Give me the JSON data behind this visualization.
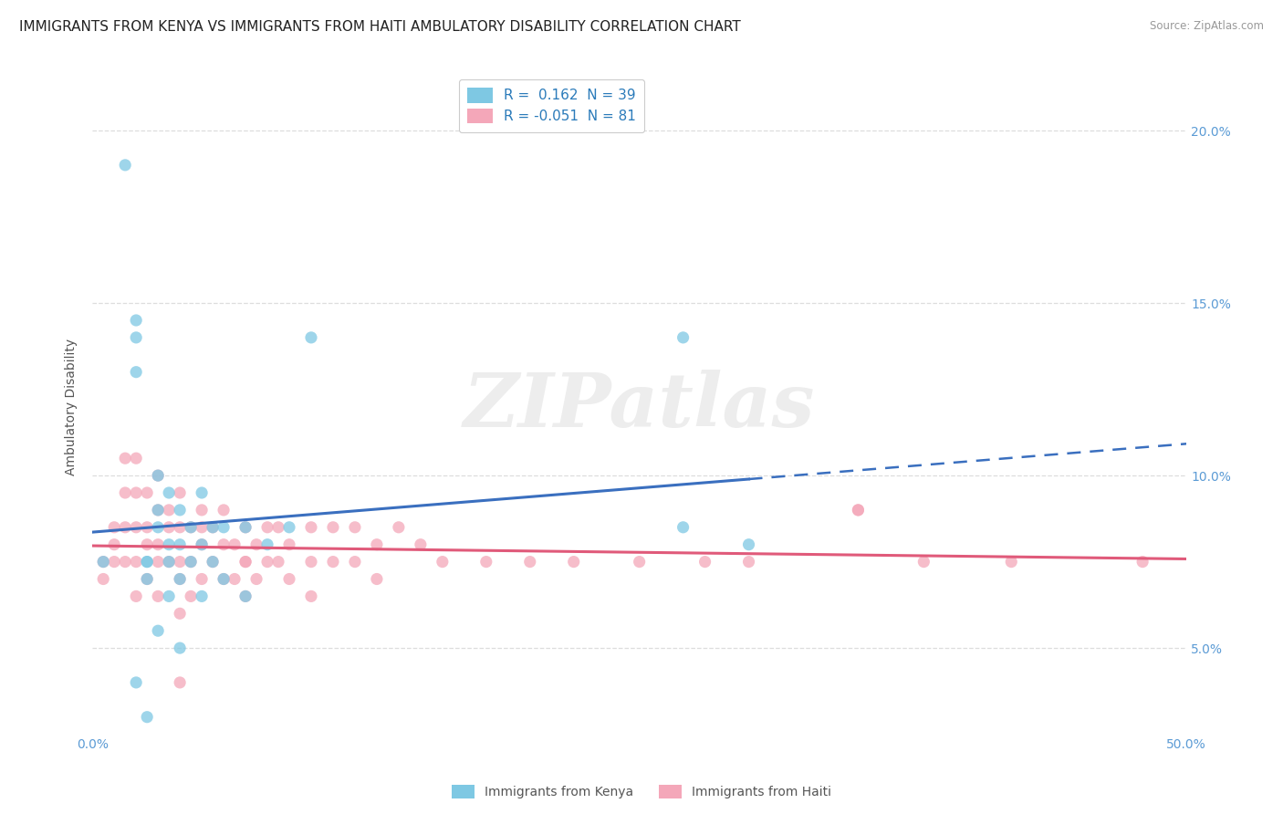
{
  "title": "IMMIGRANTS FROM KENYA VS IMMIGRANTS FROM HAITI AMBULATORY DISABILITY CORRELATION CHART",
  "source": "Source: ZipAtlas.com",
  "ylabel": "Ambulatory Disability",
  "ytick_values": [
    0.05,
    0.1,
    0.15,
    0.2
  ],
  "ytick_labels": [
    "5.0%",
    "10.0%",
    "15.0%",
    "20.0%"
  ],
  "xlim": [
    0.0,
    0.5
  ],
  "ylim": [
    0.025,
    0.215
  ],
  "legend_kenya": "R =  0.162  N = 39",
  "legend_haiti": "R = -0.051  N = 81",
  "kenya_color": "#7ec8e3",
  "haiti_color": "#f4a7b9",
  "kenya_trendline_color": "#3a6fbf",
  "haiti_trendline_color": "#e05a7a",
  "kenya_x": [
    0.005,
    0.015,
    0.02,
    0.02,
    0.02,
    0.025,
    0.025,
    0.025,
    0.03,
    0.03,
    0.03,
    0.03,
    0.035,
    0.035,
    0.035,
    0.035,
    0.04,
    0.04,
    0.04,
    0.045,
    0.045,
    0.05,
    0.05,
    0.05,
    0.055,
    0.055,
    0.06,
    0.06,
    0.07,
    0.07,
    0.08,
    0.09,
    0.1,
    0.27,
    0.3,
    0.02,
    0.025,
    0.04,
    0.27
  ],
  "kenya_y": [
    0.075,
    0.19,
    0.145,
    0.14,
    0.13,
    0.075,
    0.075,
    0.07,
    0.1,
    0.09,
    0.085,
    0.055,
    0.095,
    0.08,
    0.075,
    0.065,
    0.09,
    0.08,
    0.07,
    0.085,
    0.075,
    0.095,
    0.08,
    0.065,
    0.085,
    0.075,
    0.085,
    0.07,
    0.085,
    0.065,
    0.08,
    0.085,
    0.14,
    0.085,
    0.08,
    0.04,
    0.03,
    0.05,
    0.14
  ],
  "haiti_x": [
    0.005,
    0.005,
    0.01,
    0.01,
    0.01,
    0.015,
    0.015,
    0.015,
    0.015,
    0.02,
    0.02,
    0.02,
    0.02,
    0.02,
    0.025,
    0.025,
    0.025,
    0.025,
    0.03,
    0.03,
    0.03,
    0.03,
    0.03,
    0.035,
    0.035,
    0.035,
    0.04,
    0.04,
    0.04,
    0.04,
    0.04,
    0.045,
    0.045,
    0.045,
    0.05,
    0.05,
    0.05,
    0.055,
    0.055,
    0.06,
    0.06,
    0.06,
    0.065,
    0.065,
    0.07,
    0.07,
    0.07,
    0.075,
    0.075,
    0.08,
    0.08,
    0.085,
    0.085,
    0.09,
    0.09,
    0.1,
    0.1,
    0.1,
    0.11,
    0.11,
    0.12,
    0.12,
    0.13,
    0.13,
    0.14,
    0.15,
    0.16,
    0.18,
    0.2,
    0.22,
    0.25,
    0.28,
    0.3,
    0.35,
    0.38,
    0.42,
    0.04,
    0.05,
    0.07,
    0.35,
    0.48
  ],
  "haiti_y": [
    0.075,
    0.07,
    0.085,
    0.08,
    0.075,
    0.105,
    0.095,
    0.085,
    0.075,
    0.105,
    0.095,
    0.085,
    0.075,
    0.065,
    0.095,
    0.085,
    0.08,
    0.07,
    0.1,
    0.09,
    0.08,
    0.075,
    0.065,
    0.09,
    0.085,
    0.075,
    0.095,
    0.085,
    0.075,
    0.07,
    0.06,
    0.085,
    0.075,
    0.065,
    0.09,
    0.08,
    0.07,
    0.085,
    0.075,
    0.09,
    0.08,
    0.07,
    0.08,
    0.07,
    0.085,
    0.075,
    0.065,
    0.08,
    0.07,
    0.085,
    0.075,
    0.085,
    0.075,
    0.08,
    0.07,
    0.085,
    0.075,
    0.065,
    0.085,
    0.075,
    0.085,
    0.075,
    0.08,
    0.07,
    0.085,
    0.08,
    0.075,
    0.075,
    0.075,
    0.075,
    0.075,
    0.075,
    0.075,
    0.09,
    0.075,
    0.075,
    0.04,
    0.085,
    0.075,
    0.09,
    0.075
  ],
  "watermark_text": "ZIPatlas",
  "background_color": "#ffffff",
  "grid_color": "#dddddd",
  "title_fontsize": 11,
  "axis_label_fontsize": 10,
  "tick_fontsize": 10,
  "right_tick_color": "#5b9bd5",
  "bottom_tick_color": "#5b9bd5"
}
